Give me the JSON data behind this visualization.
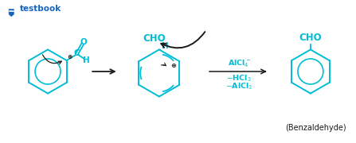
{
  "bg_color": "#ffffff",
  "teal": "#00bcd4",
  "dark": "#1a1a1a",
  "logo_text": "testbook",
  "logo_color": "#1565c0",
  "benzaldehyde_label": "(Benzaldehyde)",
  "cho_label": "CHO",
  "h_label": "H",
  "plus_label": "⊕",
  "c_label": "C",
  "o_label": "O",
  "alcl4_label": "AlCl",
  "alcl4_sub": "4",
  "alcl4_sup": "-",
  "hcl3_label": "-HCl",
  "hcl3_sub": "3",
  "alcl3_label": "-AlCl",
  "alcl3_sub": "3"
}
